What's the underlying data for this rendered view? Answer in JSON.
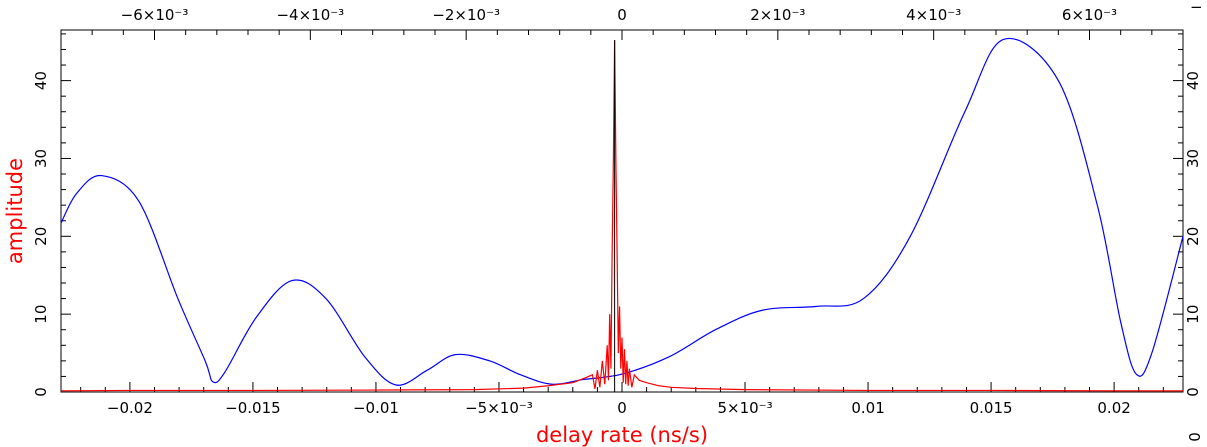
{
  "chart_data": {
    "type": "line",
    "title": "",
    "xlabel": "delay rate (ns/s)",
    "ylabel": "amplitude",
    "xlim": [
      -0.0228,
      0.0228
    ],
    "ylim": [
      0,
      46.5
    ],
    "top_xlim": [
      -0.0072,
      0.0072
    ],
    "x_ticks": [
      -0.02,
      -0.015,
      -0.01,
      -0.005,
      0,
      0.005,
      0.01,
      0.015,
      0.02
    ],
    "x_tick_labels": [
      "−0.02",
      "−0.015",
      "−0.01",
      "−5×10⁻³",
      "0",
      "5×10⁻³",
      "0.01",
      "0.015",
      "0.02"
    ],
    "y_ticks": [
      0,
      10,
      20,
      30,
      40
    ],
    "y_tick_labels": [
      "0",
      "10",
      "20",
      "30",
      "40"
    ],
    "top_x_ticks": [
      -0.006,
      -0.004,
      -0.002,
      0,
      0.002,
      0.004,
      0.006
    ],
    "top_x_tick_labels": [
      "−6×10⁻³",
      "−4×10⁻³",
      "−2×10⁻³",
      "0",
      "2×10⁻³",
      "4×10⁻³",
      "6×10⁻³"
    ],
    "top_right_fragment": "−",
    "bottom_right_fragment": "0",
    "grid": false,
    "series": [
      {
        "color": "#0000ff",
        "axis": "top",
        "points": [
          [
            -0.0072,
            21.7
          ],
          [
            -0.007,
            25.5
          ],
          [
            -0.00668,
            27.8
          ],
          [
            -0.0062,
            24.5
          ],
          [
            -0.0057,
            12.0
          ],
          [
            -0.00535,
            4.0
          ],
          [
            -0.00525,
            1.3
          ],
          [
            -0.0051,
            2.5
          ],
          [
            -0.0047,
            9.5
          ],
          [
            -0.00424,
            14.3
          ],
          [
            -0.0038,
            12.0
          ],
          [
            -0.0033,
            4.5
          ],
          [
            -0.0029,
            0.9
          ],
          [
            -0.0025,
            2.8
          ],
          [
            -0.00214,
            4.8
          ],
          [
            -0.0017,
            4.0
          ],
          [
            -0.0013,
            2.2
          ],
          [
            -0.0009,
            1.0
          ],
          [
            -0.0005,
            1.6
          ],
          [
            0.0,
            2.3
          ],
          [
            0.0006,
            4.5
          ],
          [
            0.0012,
            8.0
          ],
          [
            0.0018,
            10.5
          ],
          [
            0.0025,
            11.0
          ],
          [
            0.0031,
            12.0
          ],
          [
            0.0037,
            20.0
          ],
          [
            0.0044,
            36.0
          ],
          [
            0.0049,
            45.3
          ],
          [
            0.0056,
            40.0
          ],
          [
            0.0061,
            24.0
          ],
          [
            0.0064,
            9.0
          ],
          [
            0.0066,
            2.3
          ],
          [
            0.0068,
            5.0
          ],
          [
            0.0072,
            20.0
          ]
        ]
      },
      {
        "color": "#ff0000",
        "axis": "bottom",
        "peak_x": -0.0003,
        "peak_y": 45.2,
        "points": [
          [
            -0.0228,
            0.15
          ],
          [
            -0.02,
            0.2
          ],
          [
            -0.015,
            0.2
          ],
          [
            -0.01,
            0.25
          ],
          [
            -0.006,
            0.3
          ],
          [
            -0.004,
            0.5
          ],
          [
            -0.003,
            0.8
          ],
          [
            -0.002,
            1.2
          ],
          [
            -0.0015,
            1.8
          ],
          [
            -0.0012,
            2.2
          ],
          [
            -0.0011,
            0.4
          ],
          [
            -0.001,
            2.8
          ],
          [
            -0.0009,
            0.6
          ],
          [
            -0.0008,
            4.0
          ],
          [
            -0.0007,
            1.0
          ],
          [
            -0.0006,
            6.0
          ],
          [
            -0.00055,
            1.5
          ],
          [
            -0.0005,
            10.0
          ],
          [
            -0.00045,
            3.0
          ],
          [
            -0.0004,
            18.0
          ],
          [
            -0.00035,
            30.0
          ],
          [
            -0.0003,
            45.2
          ],
          [
            -0.00025,
            30.0
          ],
          [
            -0.0002,
            18.0
          ],
          [
            -0.00015,
            5.0
          ],
          [
            -0.0001,
            11.0
          ],
          [
            -5e-05,
            3.0
          ],
          [
            0.0,
            7.0
          ],
          [
            5e-05,
            1.2
          ],
          [
            0.0001,
            5.5
          ],
          [
            0.00015,
            1.0
          ],
          [
            0.0002,
            4.0
          ],
          [
            0.00025,
            0.8
          ],
          [
            0.0003,
            3.0
          ],
          [
            0.0004,
            0.6
          ],
          [
            0.0005,
            2.2
          ],
          [
            0.0007,
            1.5
          ],
          [
            0.001,
            1.2
          ],
          [
            0.0015,
            0.8
          ],
          [
            0.002,
            0.6
          ],
          [
            0.003,
            0.45
          ],
          [
            0.005,
            0.3
          ],
          [
            0.01,
            0.2
          ],
          [
            0.015,
            0.2
          ],
          [
            0.02,
            0.15
          ],
          [
            0.0228,
            0.15
          ]
        ]
      }
    ]
  }
}
